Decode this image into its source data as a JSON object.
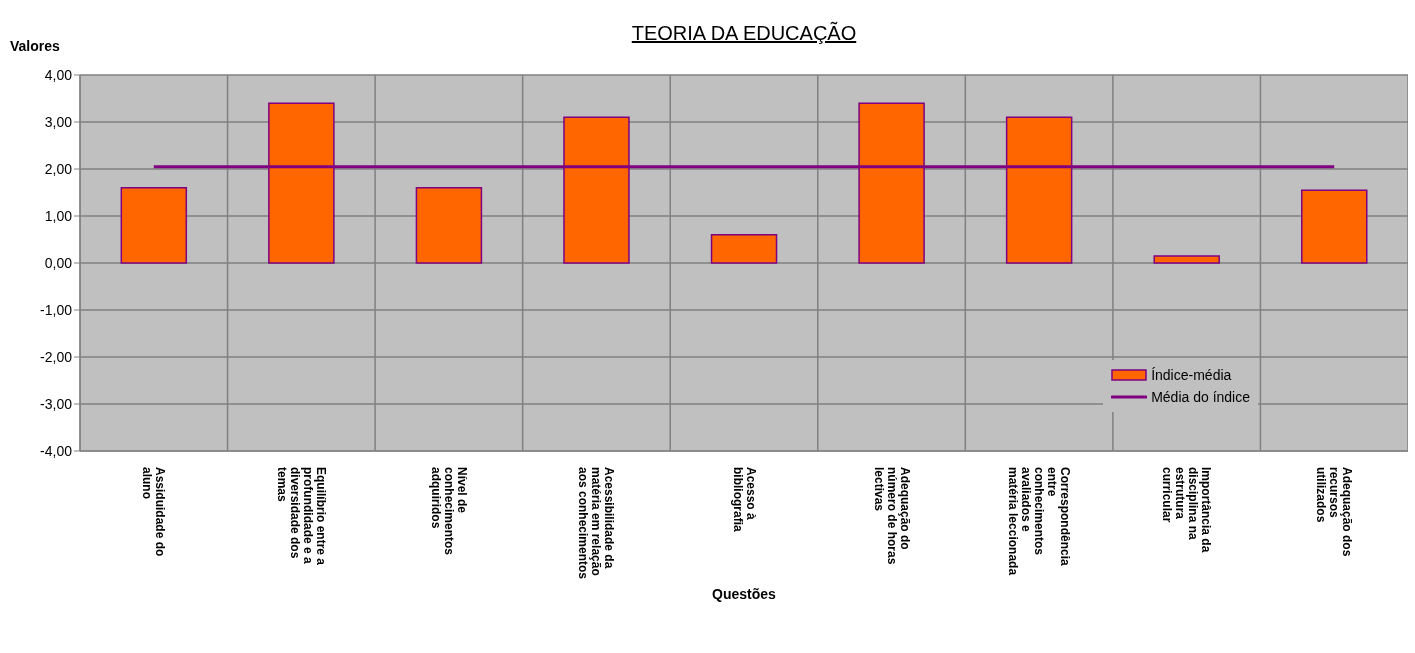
{
  "chart_data": {
    "type": "bar",
    "title": "TEORIA DA EDUCAÇÃO",
    "xlabel": "Questões",
    "ylabel": "Valores",
    "categories": [
      "Assiduidade do aluno",
      "Equilíbrio entre a profundidade e a diversidade dos temas",
      "Nível de conhecimentos adquiridos",
      "Acessibilidade da matéria em relação aos conhecimentos",
      "Acesso à bibliografia",
      "Adequação do número de horas lectivas",
      "Correspondência entre conhecimentos avaliados e matéria leccionada",
      "Importância da disciplina na estrutura curricular",
      "Adequação dos recursos utilizados"
    ],
    "series": [
      {
        "name": "Índice-média",
        "color": "#ff6600",
        "values": [
          1.6,
          3.4,
          1.6,
          3.1,
          0.6,
          3.4,
          3.1,
          0.15,
          1.55
        ]
      },
      {
        "name": "Média do índice",
        "type": "line",
        "color": "#800080",
        "values": [
          2.05,
          2.05,
          2.05,
          2.05,
          2.05,
          2.05,
          2.05,
          2.05,
          2.05
        ]
      }
    ],
    "ylim": [
      -4,
      4
    ],
    "yticks": [
      {
        "value": -4,
        "label": "-4,00"
      },
      {
        "value": -3,
        "label": "-3,00"
      },
      {
        "value": -2,
        "label": "-2,00"
      },
      {
        "value": -1,
        "label": "-1,00"
      },
      {
        "value": 0,
        "label": "0,00"
      },
      {
        "value": 1,
        "label": "1,00"
      },
      {
        "value": 2,
        "label": "2,00"
      },
      {
        "value": 3,
        "label": "3,00"
      },
      {
        "value": 4,
        "label": "4,00"
      }
    ],
    "grid": true,
    "legend": "right",
    "marker": "none"
  }
}
